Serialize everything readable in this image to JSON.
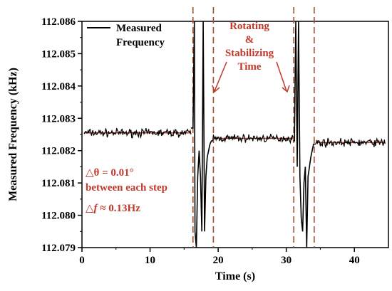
{
  "chart_data": {
    "type": "line",
    "title": "",
    "xlabel": "Time (s)",
    "ylabel": "Measured Frequency (kHz)",
    "xlim": [
      0,
      45
    ],
    "ylim": [
      112.079,
      112.086
    ],
    "x_ticks": [
      0,
      10,
      20,
      30,
      40
    ],
    "y_ticks": [
      "112.079",
      "112.080",
      "112.081",
      "112.082",
      "112.083",
      "112.084",
      "112.085",
      "112.086"
    ],
    "legend": {
      "label": "Measured\nFrequency",
      "placement": "top-left"
    },
    "grid": false,
    "colors": {
      "measured": "#000000",
      "fit": "#c0392b",
      "annotation": "#c0392b",
      "dashed": "#a0522d"
    },
    "series": [
      {
        "name": "Measured Frequency",
        "segments": [
          {
            "x_start": 0.3,
            "x_end": 16.0,
            "mean": 112.08255
          },
          {
            "x_start": 19.2,
            "x_end": 31.0,
            "mean": 112.08238
          },
          {
            "x_start": 34.3,
            "x_end": 44.5,
            "mean": 112.08225
          }
        ],
        "transients": [
          {
            "x": [
              16.0,
              16.3,
              16.5,
              16.6,
              16.8,
              17.0,
              17.2,
              17.4,
              17.6,
              17.8,
              18.0,
              18.2,
              18.4,
              18.6,
              18.8,
              19.0,
              19.2
            ],
            "y": [
              112.0827,
              112.0827,
              112.086,
              112.0795,
              112.0785,
              112.0812,
              112.082,
              112.0812,
              112.0795,
              112.086,
              112.0795,
              112.0812,
              112.0818,
              112.082,
              112.0822,
              112.0823,
              112.0823
            ]
          },
          {
            "x": [
              31.0,
              31.2,
              31.4,
              31.6,
              31.8,
              32.0,
              32.2,
              32.4,
              32.6,
              32.8,
              33.0,
              33.2,
              33.4,
              33.6,
              33.8,
              34.0,
              34.3
            ],
            "y": [
              112.0823,
              112.0823,
              112.086,
              112.0815,
              112.086,
              112.0812,
              112.0799,
              112.0795,
              112.081,
              112.0815,
              112.079,
              112.0812,
              112.0815,
              112.0818,
              112.082,
              112.0822,
              112.0822
            ]
          }
        ]
      }
    ],
    "dashed_lines_x": [
      16.3,
      19.3,
      31.1,
      34.1
    ],
    "annotations": [
      {
        "id": "rotating",
        "lines": [
          "Rotating",
          "&",
          "Stabilizing",
          "Time"
        ]
      },
      {
        "id": "delta-theta",
        "lines": [
          "△θ = 0.01°",
          "between each step"
        ]
      },
      {
        "id": "delta-f",
        "prefix": "△",
        "italic": "f",
        "suffix": " ≈ 0.13Hz"
      }
    ]
  }
}
